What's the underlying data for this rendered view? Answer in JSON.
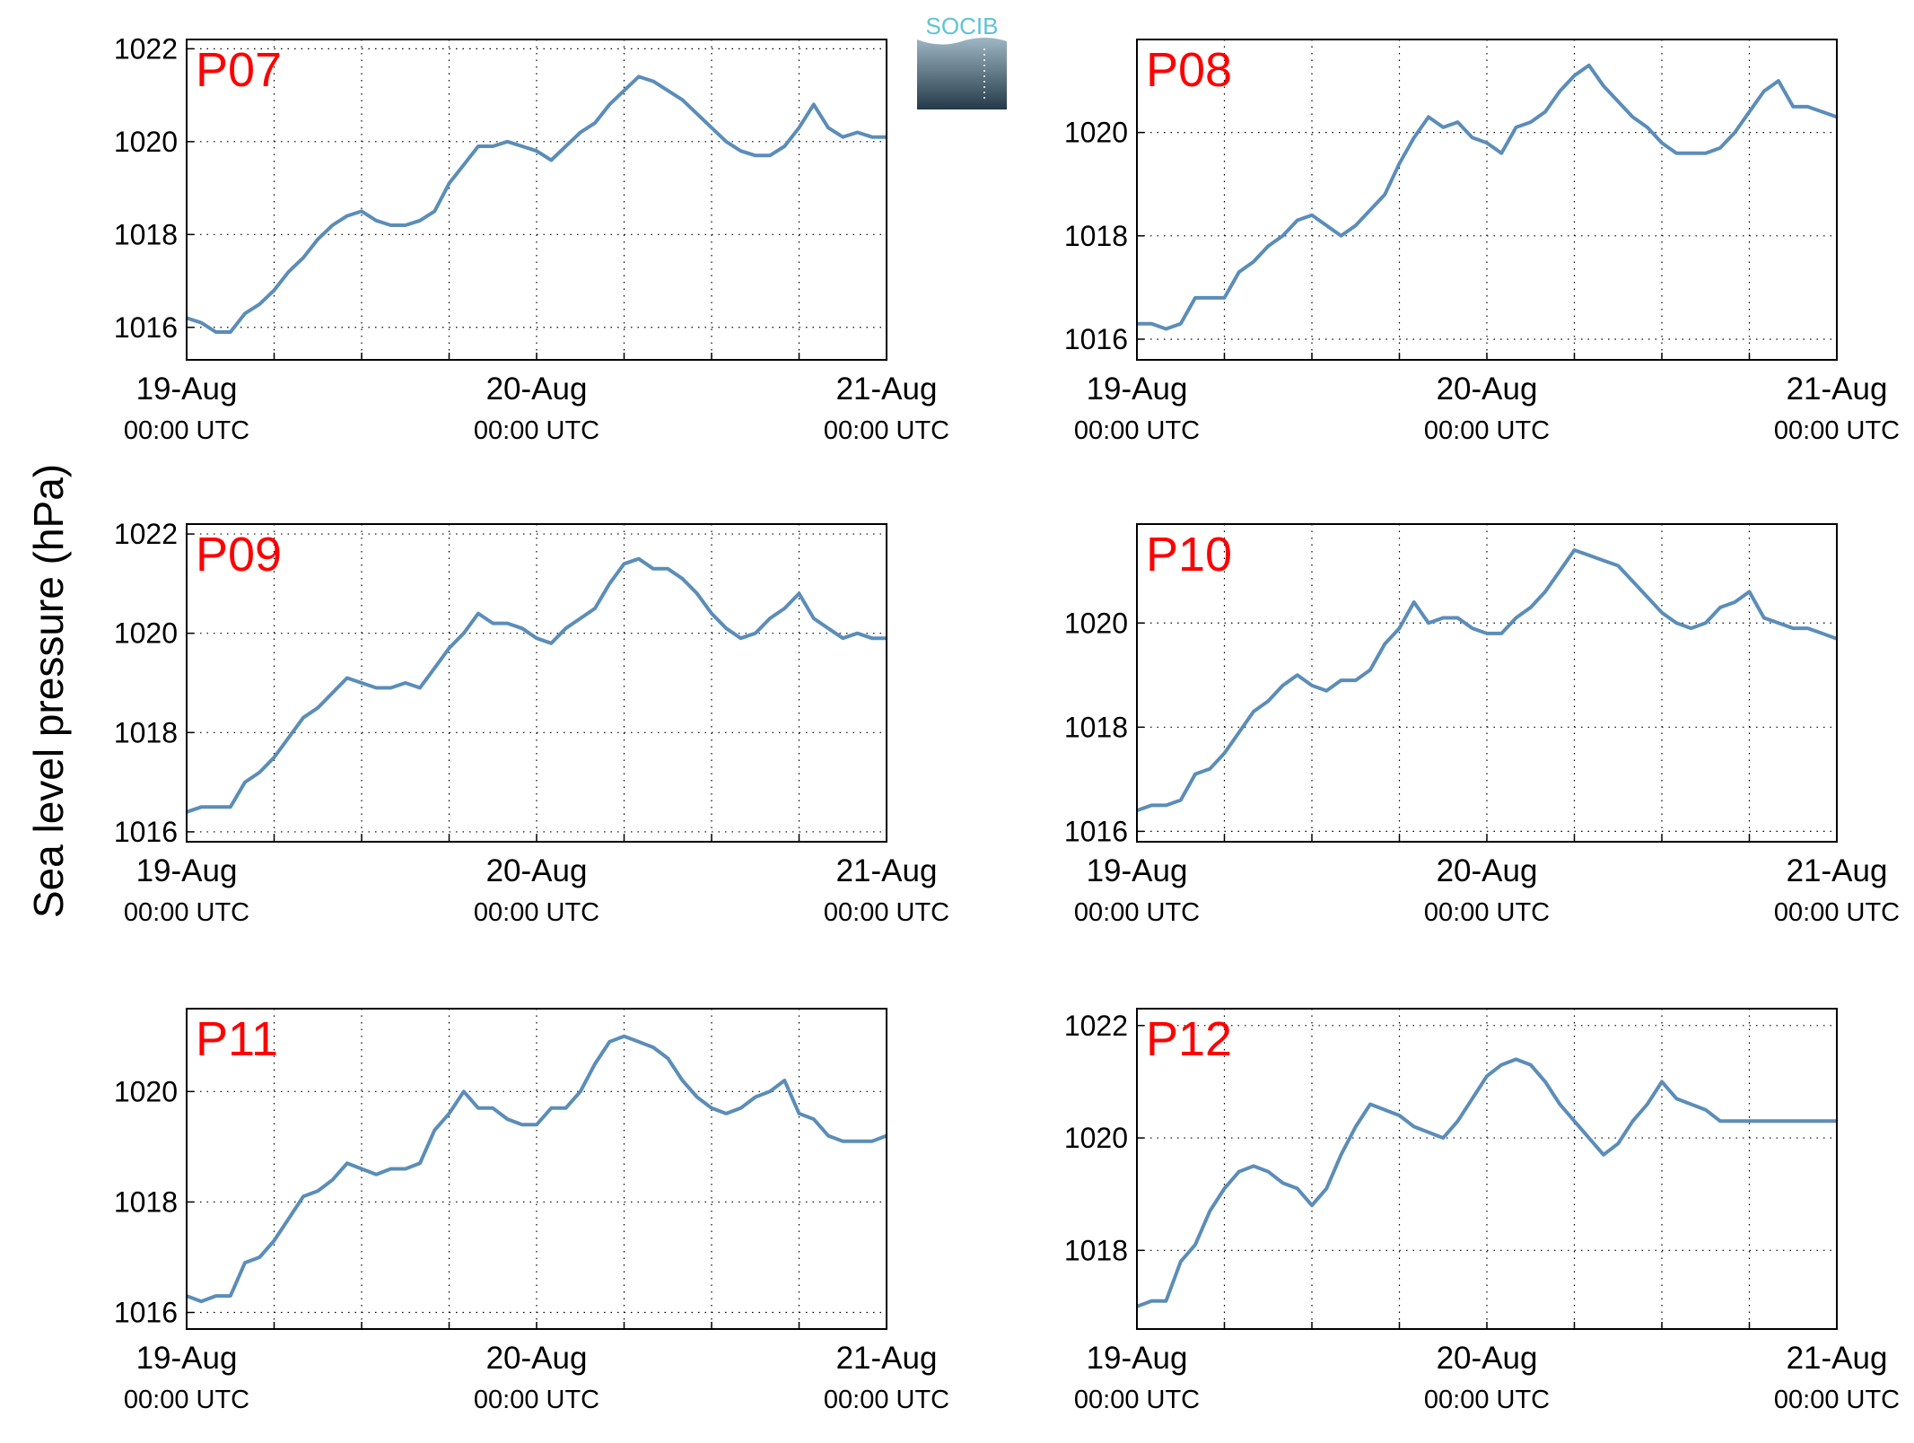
{
  "figure": {
    "ylabel": "Sea level pressure (hPa)",
    "logo_text": "SOCIB"
  },
  "style": {
    "line_color": "#5b8db8",
    "title_color": "#ff0000",
    "axis_color": "#000000",
    "grid_color": "#000000"
  },
  "chart_data": [
    {
      "type": "line",
      "title": "P07",
      "grid": true,
      "x_range": [
        "2014-08-19 00:00",
        "2014-08-21 00:00"
      ],
      "x_ticks": [
        {
          "day": "19-Aug",
          "time": "00:00 UTC"
        },
        {
          "day": "20-Aug",
          "time": "00:00 UTC"
        },
        {
          "day": "21-Aug",
          "time": "00:00 UTC"
        }
      ],
      "ylim": [
        1015.3,
        1022.2
      ],
      "yticks": [
        1016,
        1018,
        1020,
        1022
      ],
      "series": [
        {
          "x_hours": [
            0,
            1,
            2,
            3,
            4,
            5,
            6,
            7,
            8,
            9,
            10,
            11,
            12,
            13,
            14,
            15,
            16,
            17,
            18,
            19,
            20,
            21,
            22,
            23,
            24,
            25,
            26,
            27,
            28,
            29,
            30,
            31,
            32,
            33,
            34,
            35,
            36,
            37,
            38,
            39,
            40,
            41,
            42,
            43,
            44,
            45,
            46,
            47,
            48
          ],
          "values": [
            1016.2,
            1016.1,
            1015.9,
            1015.9,
            1016.3,
            1016.5,
            1016.8,
            1017.2,
            1017.5,
            1017.9,
            1018.2,
            1018.4,
            1018.5,
            1018.3,
            1018.2,
            1018.2,
            1018.3,
            1018.5,
            1019.1,
            1019.5,
            1019.9,
            1019.9,
            1020.0,
            1019.9,
            1019.8,
            1019.6,
            1019.9,
            1020.2,
            1020.4,
            1020.8,
            1021.1,
            1021.4,
            1021.3,
            1021.1,
            1020.9,
            1020.6,
            1020.3,
            1020.0,
            1019.8,
            1019.7,
            1019.7,
            1019.9,
            1020.3,
            1020.8,
            1020.3,
            1020.1,
            1020.2,
            1020.1,
            1020.1
          ]
        }
      ]
    },
    {
      "type": "line",
      "title": "P08",
      "grid": true,
      "x_range": [
        "2014-08-19 00:00",
        "2014-08-21 00:00"
      ],
      "x_ticks": [
        {
          "day": "19-Aug",
          "time": "00:00 UTC"
        },
        {
          "day": "20-Aug",
          "time": "00:00 UTC"
        },
        {
          "day": "21-Aug",
          "time": "00:00 UTC"
        }
      ],
      "ylim": [
        1015.6,
        1021.8
      ],
      "yticks": [
        1016,
        1018,
        1020
      ],
      "series": [
        {
          "x_hours": [
            0,
            1,
            2,
            3,
            4,
            5,
            6,
            7,
            8,
            9,
            10,
            11,
            12,
            13,
            14,
            15,
            16,
            17,
            18,
            19,
            20,
            21,
            22,
            23,
            24,
            25,
            26,
            27,
            28,
            29,
            30,
            31,
            32,
            33,
            34,
            35,
            36,
            37,
            38,
            39,
            40,
            41,
            42,
            43,
            44,
            45,
            46,
            47,
            48
          ],
          "values": [
            1016.3,
            1016.3,
            1016.2,
            1016.3,
            1016.8,
            1016.8,
            1016.8,
            1017.3,
            1017.5,
            1017.8,
            1018.0,
            1018.3,
            1018.4,
            1018.2,
            1018.0,
            1018.2,
            1018.5,
            1018.8,
            1019.4,
            1019.9,
            1020.3,
            1020.1,
            1020.2,
            1019.9,
            1019.8,
            1019.6,
            1020.1,
            1020.2,
            1020.4,
            1020.8,
            1021.1,
            1021.3,
            1020.9,
            1020.6,
            1020.3,
            1020.1,
            1019.8,
            1019.6,
            1019.6,
            1019.6,
            1019.7,
            1020.0,
            1020.4,
            1020.8,
            1021.0,
            1020.5,
            1020.5,
            1020.4,
            1020.3
          ]
        }
      ]
    },
    {
      "type": "line",
      "title": "P09",
      "grid": true,
      "x_range": [
        "2014-08-19 00:00",
        "2014-08-21 00:00"
      ],
      "x_ticks": [
        {
          "day": "19-Aug",
          "time": "00:00 UTC"
        },
        {
          "day": "20-Aug",
          "time": "00:00 UTC"
        },
        {
          "day": "21-Aug",
          "time": "00:00 UTC"
        }
      ],
      "ylim": [
        1015.8,
        1022.2
      ],
      "yticks": [
        1016,
        1018,
        1020,
        1022
      ],
      "series": [
        {
          "x_hours": [
            0,
            1,
            2,
            3,
            4,
            5,
            6,
            7,
            8,
            9,
            10,
            11,
            12,
            13,
            14,
            15,
            16,
            17,
            18,
            19,
            20,
            21,
            22,
            23,
            24,
            25,
            26,
            27,
            28,
            29,
            30,
            31,
            32,
            33,
            34,
            35,
            36,
            37,
            38,
            39,
            40,
            41,
            42,
            43,
            44,
            45,
            46,
            47,
            48
          ],
          "values": [
            1016.4,
            1016.5,
            1016.5,
            1016.5,
            1017.0,
            1017.2,
            1017.5,
            1017.9,
            1018.3,
            1018.5,
            1018.8,
            1019.1,
            1019.0,
            1018.9,
            1018.9,
            1019.0,
            1018.9,
            1019.3,
            1019.7,
            1020.0,
            1020.4,
            1020.2,
            1020.2,
            1020.1,
            1019.9,
            1019.8,
            1020.1,
            1020.3,
            1020.5,
            1021.0,
            1021.4,
            1021.5,
            1021.3,
            1021.3,
            1021.1,
            1020.8,
            1020.4,
            1020.1,
            1019.9,
            1020.0,
            1020.3,
            1020.5,
            1020.8,
            1020.3,
            1020.1,
            1019.9,
            1020.0,
            1019.9,
            1019.9
          ]
        }
      ]
    },
    {
      "type": "line",
      "title": "P10",
      "grid": true,
      "x_range": [
        "2014-08-19 00:00",
        "2014-08-21 00:00"
      ],
      "x_ticks": [
        {
          "day": "19-Aug",
          "time": "00:00 UTC"
        },
        {
          "day": "20-Aug",
          "time": "00:00 UTC"
        },
        {
          "day": "21-Aug",
          "time": "00:00 UTC"
        }
      ],
      "ylim": [
        1015.8,
        1021.9
      ],
      "yticks": [
        1016,
        1018,
        1020
      ],
      "series": [
        {
          "x_hours": [
            0,
            1,
            2,
            3,
            4,
            5,
            6,
            7,
            8,
            9,
            10,
            11,
            12,
            13,
            14,
            15,
            16,
            17,
            18,
            19,
            20,
            21,
            22,
            23,
            24,
            25,
            26,
            27,
            28,
            29,
            30,
            31,
            32,
            33,
            34,
            35,
            36,
            37,
            38,
            39,
            40,
            41,
            42,
            43,
            44,
            45,
            46,
            47,
            48
          ],
          "values": [
            1016.4,
            1016.5,
            1016.5,
            1016.6,
            1017.1,
            1017.2,
            1017.5,
            1017.9,
            1018.3,
            1018.5,
            1018.8,
            1019.0,
            1018.8,
            1018.7,
            1018.9,
            1018.9,
            1019.1,
            1019.6,
            1019.9,
            1020.4,
            1020.0,
            1020.1,
            1020.1,
            1019.9,
            1019.8,
            1019.8,
            1020.1,
            1020.3,
            1020.6,
            1021.0,
            1021.4,
            1021.3,
            1021.2,
            1021.1,
            1020.8,
            1020.5,
            1020.2,
            1020.0,
            1019.9,
            1020.0,
            1020.3,
            1020.4,
            1020.6,
            1020.1,
            1020.0,
            1019.9,
            1019.9,
            1019.8,
            1019.7
          ]
        }
      ]
    },
    {
      "type": "line",
      "title": "P11",
      "grid": true,
      "x_range": [
        "2014-08-19 00:00",
        "2014-08-21 00:00"
      ],
      "x_ticks": [
        {
          "day": "19-Aug",
          "time": "00:00 UTC"
        },
        {
          "day": "20-Aug",
          "time": "00:00 UTC"
        },
        {
          "day": "21-Aug",
          "time": "00:00 UTC"
        }
      ],
      "ylim": [
        1015.7,
        1021.5
      ],
      "yticks": [
        1016,
        1018,
        1020
      ],
      "series": [
        {
          "x_hours": [
            0,
            1,
            2,
            3,
            4,
            5,
            6,
            7,
            8,
            9,
            10,
            11,
            12,
            13,
            14,
            15,
            16,
            17,
            18,
            19,
            20,
            21,
            22,
            23,
            24,
            25,
            26,
            27,
            28,
            29,
            30,
            31,
            32,
            33,
            34,
            35,
            36,
            37,
            38,
            39,
            40,
            41,
            42,
            43,
            44,
            45,
            46,
            47,
            48
          ],
          "values": [
            1016.3,
            1016.2,
            1016.3,
            1016.3,
            1016.9,
            1017.0,
            1017.3,
            1017.7,
            1018.1,
            1018.2,
            1018.4,
            1018.7,
            1018.6,
            1018.5,
            1018.6,
            1018.6,
            1018.7,
            1019.3,
            1019.6,
            1020.0,
            1019.7,
            1019.7,
            1019.5,
            1019.4,
            1019.4,
            1019.7,
            1019.7,
            1020.0,
            1020.5,
            1020.9,
            1021.0,
            1020.9,
            1020.8,
            1020.6,
            1020.2,
            1019.9,
            1019.7,
            1019.6,
            1019.7,
            1019.9,
            1020.0,
            1020.2,
            1019.6,
            1019.5,
            1019.2,
            1019.1,
            1019.1,
            1019.1,
            1019.2
          ]
        }
      ]
    },
    {
      "type": "line",
      "title": "P12",
      "grid": true,
      "x_range": [
        "2014-08-19 00:00",
        "2014-08-21 00:00"
      ],
      "x_ticks": [
        {
          "day": "19-Aug",
          "time": "00:00 UTC"
        },
        {
          "day": "20-Aug",
          "time": "00:00 UTC"
        },
        {
          "day": "21-Aug",
          "time": "00:00 UTC"
        }
      ],
      "ylim": [
        1016.6,
        1022.3
      ],
      "yticks": [
        1018,
        1020,
        1022
      ],
      "series": [
        {
          "x_hours": [
            0,
            1,
            2,
            3,
            4,
            5,
            6,
            7,
            8,
            9,
            10,
            11,
            12,
            13,
            14,
            15,
            16,
            17,
            18,
            19,
            20,
            21,
            22,
            23,
            24,
            25,
            26,
            27,
            28,
            29,
            30,
            31,
            32,
            33,
            34,
            35,
            36,
            37,
            38,
            39,
            40,
            41,
            42,
            43,
            44,
            45,
            46,
            47,
            48
          ],
          "values": [
            1017.0,
            1017.1,
            1017.1,
            1017.8,
            1018.1,
            1018.7,
            1019.1,
            1019.4,
            1019.5,
            1019.4,
            1019.2,
            1019.1,
            1018.8,
            1019.1,
            1019.7,
            1020.2,
            1020.6,
            1020.5,
            1020.4,
            1020.2,
            1020.1,
            1020.0,
            1020.3,
            1020.7,
            1021.1,
            1021.3,
            1021.4,
            1021.3,
            1021.0,
            1020.6,
            1020.3,
            1020.0,
            1019.7,
            1019.9,
            1020.3,
            1020.6,
            1021.0,
            1020.7,
            1020.6,
            1020.5,
            1020.3,
            1020.3,
            1020.3,
            1020.3,
            1020.3,
            1020.3,
            1020.3,
            1020.3,
            1020.3
          ]
        }
      ]
    }
  ]
}
